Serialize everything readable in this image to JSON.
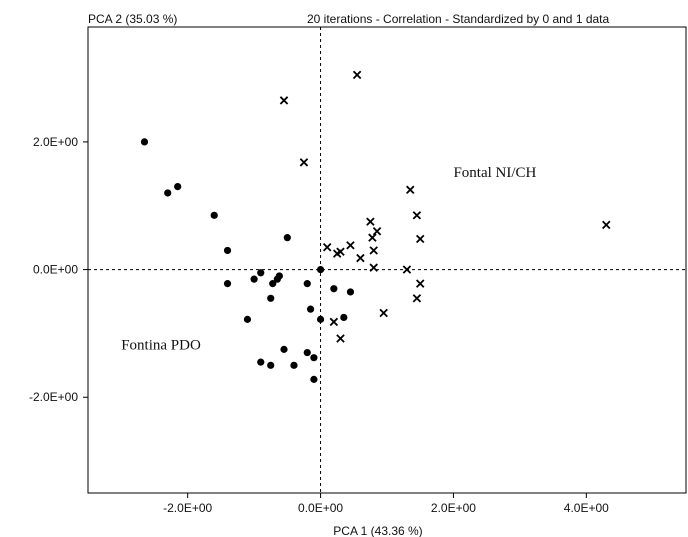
{
  "chart_data": {
    "type": "scatter",
    "title": "20 iterations - Correlation - Standardized by 0 and 1 data",
    "xlabel": "PCA 1 (43.36 %)",
    "ylabel": "PCA 2 (35.03 %)",
    "xlim": [
      -3.5,
      5.5
    ],
    "ylim": [
      -3.5,
      3.8
    ],
    "x_ticks": [
      {
        "value": -2.0,
        "label": "-2.0E+00"
      },
      {
        "value": 0.0,
        "label": "0.0E+00"
      },
      {
        "value": 2.0,
        "label": "2.0E+00"
      },
      {
        "value": 4.0,
        "label": "4.0E+00"
      }
    ],
    "y_ticks": [
      {
        "value": 2.0,
        "label": "2.0E+00"
      },
      {
        "value": 0.0,
        "label": "0.0E+00"
      },
      {
        "value": -2.0,
        "label": "-2.0E+00"
      }
    ],
    "grid": false,
    "reference_lines": "dashed lines at x=0 and y=0",
    "annotations": [
      {
        "text": "Fontal NI/CH",
        "x": 2.0,
        "y": 1.45
      },
      {
        "text": "Fontina PDO",
        "x": -3.0,
        "y": -1.25
      }
    ],
    "series": [
      {
        "marker": "dot",
        "points": [
          [
            -2.65,
            2.0
          ],
          [
            -2.3,
            1.2
          ],
          [
            -2.15,
            1.3
          ],
          [
            -1.6,
            0.85
          ],
          [
            -1.4,
            0.3
          ],
          [
            -1.4,
            -0.22
          ],
          [
            -1.1,
            -0.78
          ],
          [
            -1.0,
            -0.15
          ],
          [
            -0.9,
            -0.05
          ],
          [
            -0.9,
            -1.45
          ],
          [
            -0.75,
            -0.45
          ],
          [
            -0.75,
            -1.5
          ],
          [
            -0.72,
            -0.22
          ],
          [
            -0.65,
            -0.15
          ],
          [
            -0.62,
            -0.1
          ],
          [
            -0.55,
            -1.25
          ],
          [
            -0.5,
            0.5
          ],
          [
            -0.4,
            -1.5
          ],
          [
            -0.2,
            -0.22
          ],
          [
            -0.2,
            -1.3
          ],
          [
            -0.15,
            -0.62
          ],
          [
            -0.1,
            -1.38
          ],
          [
            -0.1,
            -1.72
          ],
          [
            0.0,
            0.0
          ],
          [
            0.0,
            -0.78
          ],
          [
            0.2,
            -0.3
          ],
          [
            0.35,
            -0.75
          ],
          [
            0.45,
            -0.35
          ]
        ]
      },
      {
        "marker": "x",
        "points": [
          [
            0.55,
            3.05
          ],
          [
            -0.55,
            2.65
          ],
          [
            -0.25,
            1.68
          ],
          [
            1.35,
            1.25
          ],
          [
            1.45,
            0.85
          ],
          [
            4.3,
            0.7
          ],
          [
            0.75,
            0.75
          ],
          [
            0.85,
            0.6
          ],
          [
            0.78,
            0.5
          ],
          [
            1.5,
            0.48
          ],
          [
            0.45,
            0.38
          ],
          [
            0.1,
            0.35
          ],
          [
            0.8,
            0.3
          ],
          [
            0.3,
            0.28
          ],
          [
            0.25,
            0.25
          ],
          [
            0.6,
            0.18
          ],
          [
            0.8,
            0.03
          ],
          [
            1.3,
            0.0
          ],
          [
            1.5,
            -0.22
          ],
          [
            1.45,
            -0.45
          ],
          [
            0.95,
            -0.68
          ],
          [
            0.2,
            -0.82
          ],
          [
            0.3,
            -1.08
          ]
        ]
      }
    ]
  }
}
